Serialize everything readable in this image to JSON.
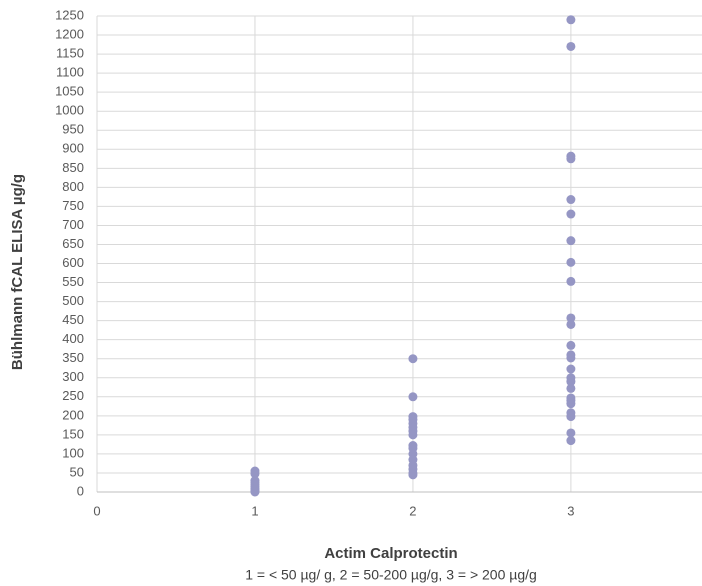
{
  "chart_data": {
    "type": "scatter",
    "x_label": "Actim Calprotectin",
    "subtitle": "1 = < 50 µg/ g, 2 = 50-200 µg/g, 3 = > 200 µg/g",
    "y_label": "Bühlmann fCAL ELISA µg/g",
    "color": "#9596c4",
    "grid": true,
    "xlim": [
      0,
      3.83
    ],
    "xticks": [
      0,
      1,
      2,
      3
    ],
    "ylim": [
      0,
      1250
    ],
    "yticks": [
      0,
      50,
      100,
      150,
      200,
      250,
      300,
      350,
      400,
      450,
      500,
      550,
      600,
      650,
      700,
      750,
      800,
      850,
      900,
      950,
      1000,
      1050,
      1100,
      1150,
      1200,
      1250
    ],
    "x": [
      3,
      3,
      3,
      3,
      3,
      3,
      3,
      3,
      3,
      3,
      3,
      3,
      3,
      3,
      3,
      3,
      3,
      3,
      3,
      3,
      3,
      3,
      3,
      3,
      3,
      2,
      2,
      2,
      2,
      2,
      2,
      2,
      2,
      2,
      2,
      2,
      2,
      2,
      2,
      2,
      2,
      1,
      1,
      1,
      1,
      1,
      1,
      1,
      1,
      1,
      1
    ],
    "values": [
      1240,
      1170,
      882,
      875,
      768,
      730,
      660,
      603,
      553,
      457,
      440,
      385,
      360,
      352,
      323,
      300,
      290,
      272,
      247,
      240,
      232,
      208,
      198,
      155,
      135,
      350,
      250,
      198,
      190,
      180,
      170,
      160,
      150,
      122,
      115,
      100,
      85,
      70,
      60,
      50,
      45,
      55,
      48,
      30,
      25,
      20,
      15,
      10,
      5,
      2,
      0
    ]
  }
}
